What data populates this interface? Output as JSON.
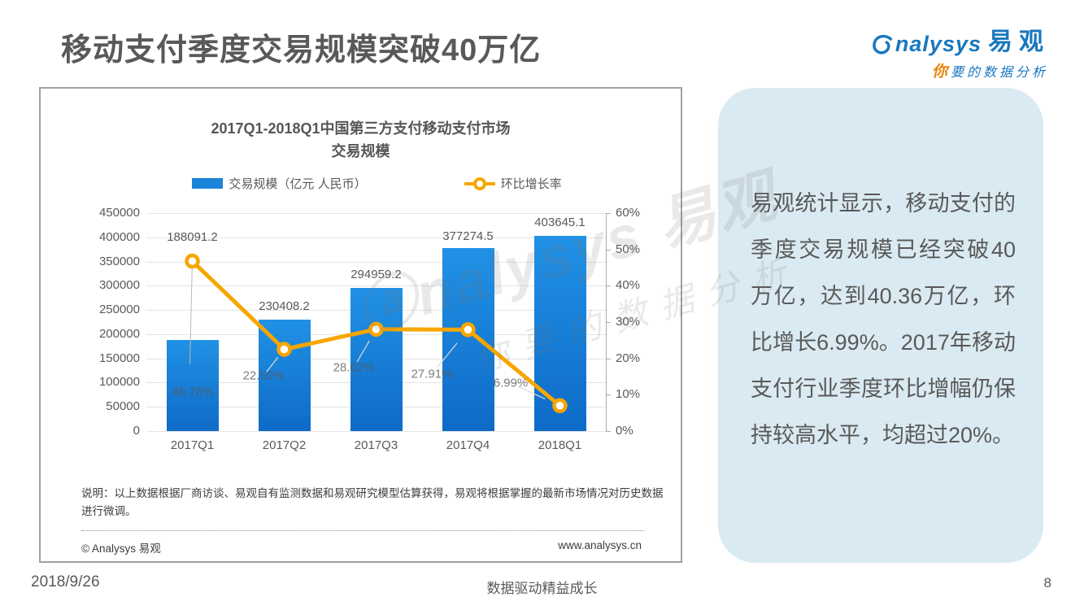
{
  "page": {
    "title": "移动支付季度交易规模突破40万亿",
    "footer": {
      "date": "2018/9/26",
      "slogan": "数据驱动精益成长",
      "page_number": "8"
    }
  },
  "logo": {
    "brand_en": "nalysys",
    "brand_cn": "易观",
    "tagline_emphasis": "你",
    "tagline_rest": "要的数据分析"
  },
  "chart_card": {
    "note": "说明：以上数据根据厂商访谈、易观自有监测数据和易观研究模型估算获得，易观将根据掌握的最新市场情况对历史数据进行微调。",
    "copyright": "© Analysys 易观",
    "website": "www.analysys.cn",
    "watermark_line1": "ⓐnalysys 易观",
    "watermark_line2": "你要的数据分析"
  },
  "chart_data": {
    "type": "bar",
    "title": "2017Q1-2018Q1中国第三方支付移动支付市场交易规模",
    "title_lines": [
      "2017Q1-2018Q1中国第三方支付移动支付市场",
      "交易规模"
    ],
    "categories": [
      "2017Q1",
      "2017Q2",
      "2017Q3",
      "2017Q4",
      "2018Q1"
    ],
    "series": [
      {
        "name": "交易规模（亿元 人民币）",
        "type": "bar",
        "axis": "left",
        "color": "#1B84D9",
        "values": [
          188091.2,
          230408.2,
          294959.2,
          377274.5,
          403645.1
        ],
        "labels": [
          "188091.2",
          "230408.2",
          "294959.2",
          "377274.5",
          "403645.1"
        ]
      },
      {
        "name": "环比增长率",
        "type": "line",
        "axis": "right",
        "color": "#F7A600",
        "values": [
          46.78,
          22.5,
          28.02,
          27.91,
          6.99
        ],
        "labels": [
          "46.78%",
          "22.50%",
          "28.02%",
          "27.91%",
          "6.99%"
        ]
      }
    ],
    "left_axis": {
      "min": 0,
      "max": 450000,
      "step": 50000,
      "ticks": [
        "450000",
        "400000",
        "350000",
        "300000",
        "250000",
        "200000",
        "150000",
        "100000",
        "50000",
        "0"
      ]
    },
    "right_axis": {
      "min": 0,
      "max": 60,
      "step": 10,
      "ticks": [
        "60%",
        "50%",
        "40%",
        "30%",
        "20%",
        "10%",
        "0%"
      ]
    },
    "grid": true,
    "legend_position": "top"
  },
  "insight_panel": {
    "text": "易观统计显示，移动支付的季度交易规模已经突破40万亿，达到40.36万亿，环比增长6.99%。2017年移动支付行业季度环比增幅仍保持较高水平，均超过20%。"
  },
  "colors": {
    "bar_blue": "#1B84D9",
    "line_orange": "#F7A600",
    "panel_bg": "#DAEAF2",
    "heading_gray": "#595959",
    "logo_blue": "#1878BE",
    "logo_orange": "#E8820C"
  }
}
